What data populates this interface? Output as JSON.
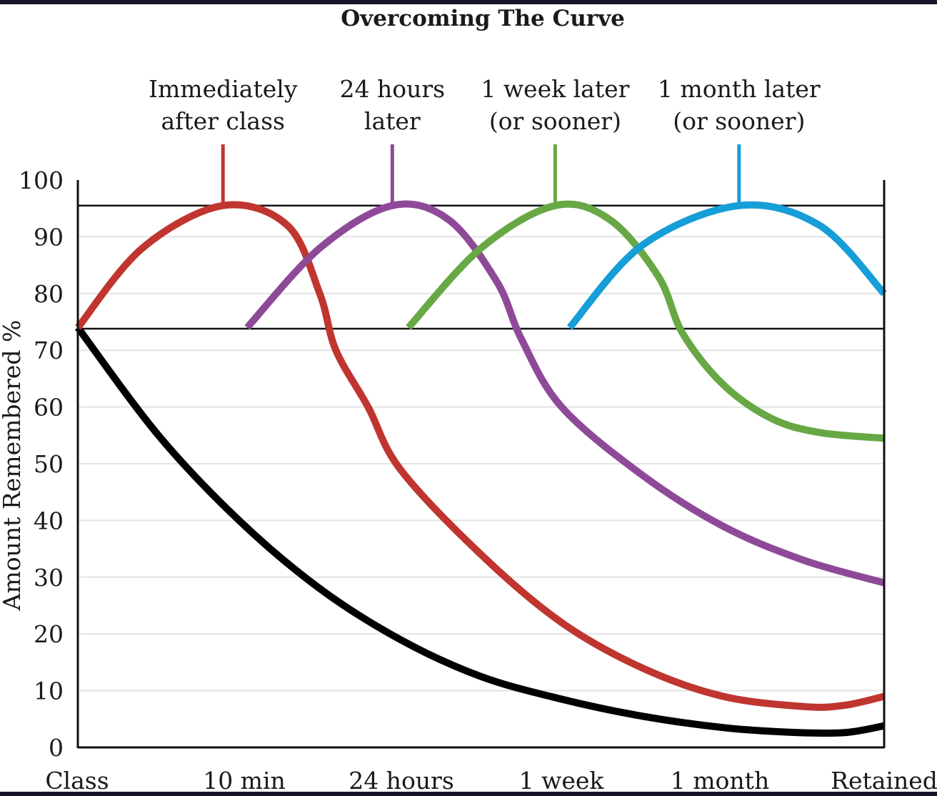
{
  "chart_data": {
    "type": "line",
    "title": "Overcoming The Curve",
    "ylabel": "Amount Remembered %",
    "xlabel": "",
    "ylim": [
      0,
      100
    ],
    "grid": true,
    "yticks": [
      0,
      10,
      20,
      30,
      40,
      50,
      60,
      70,
      80,
      90,
      100
    ],
    "x_categories": [
      "Class",
      "10 min",
      "24 hours",
      "1 week",
      "1 month",
      "Retained"
    ],
    "reference_lines": [
      95.5,
      73.8
    ],
    "annotations": [
      {
        "lines": [
          "Immediately",
          "after class"
        ],
        "x": 0.9,
        "color": "#c0352f"
      },
      {
        "lines": [
          "24 hours",
          "later"
        ],
        "x": 1.95,
        "color": "#8e4a98"
      },
      {
        "lines": [
          "1 week later",
          "(or sooner)"
        ],
        "x": 2.96,
        "color": "#67a844"
      },
      {
        "lines": [
          "1 month later",
          "(or sooner)"
        ],
        "x": 4.1,
        "color": "#159ed8"
      }
    ],
    "series": [
      {
        "color": "#000000",
        "points": [
          [
            0,
            74
          ],
          [
            0.5,
            55
          ],
          [
            1,
            40
          ],
          [
            1.5,
            28
          ],
          [
            2,
            19
          ],
          [
            2.5,
            12.5
          ],
          [
            3,
            8.5
          ],
          [
            3.5,
            5.5
          ],
          [
            4,
            3.5
          ],
          [
            4.4,
            2.7
          ],
          [
            4.75,
            2.6
          ],
          [
            5,
            3.8
          ]
        ]
      },
      {
        "color": "#c0352f",
        "points": [
          [
            0,
            74
          ],
          [
            0.4,
            88
          ],
          [
            0.9,
            95.5
          ],
          [
            1.3,
            92
          ],
          [
            1.5,
            80
          ],
          [
            1.6,
            70
          ],
          [
            1.8,
            60
          ],
          [
            2,
            49
          ],
          [
            2.5,
            34
          ],
          [
            3,
            22
          ],
          [
            3.5,
            14
          ],
          [
            4,
            9
          ],
          [
            4.5,
            7.2
          ],
          [
            4.75,
            7.4
          ],
          [
            5,
            9
          ]
        ]
      },
      {
        "color": "#8e4a98",
        "points": [
          [
            1.05,
            74
          ],
          [
            1.5,
            88
          ],
          [
            1.95,
            95.5
          ],
          [
            2.3,
            93
          ],
          [
            2.6,
            82
          ],
          [
            2.75,
            72
          ],
          [
            3,
            60
          ],
          [
            3.5,
            48
          ],
          [
            4,
            39
          ],
          [
            4.5,
            33
          ],
          [
            5,
            29
          ]
        ]
      },
      {
        "color": "#67a844",
        "points": [
          [
            2.05,
            74
          ],
          [
            2.5,
            88
          ],
          [
            2.96,
            95.5
          ],
          [
            3.3,
            93
          ],
          [
            3.6,
            83
          ],
          [
            3.75,
            73
          ],
          [
            4,
            64
          ],
          [
            4.3,
            58
          ],
          [
            4.6,
            55.5
          ],
          [
            5,
            54.5
          ]
        ]
      },
      {
        "color": "#159ed8",
        "points": [
          [
            3.05,
            74
          ],
          [
            3.5,
            88.5
          ],
          [
            4.1,
            95.5
          ],
          [
            4.6,
            92
          ],
          [
            5,
            80
          ]
        ]
      }
    ]
  }
}
